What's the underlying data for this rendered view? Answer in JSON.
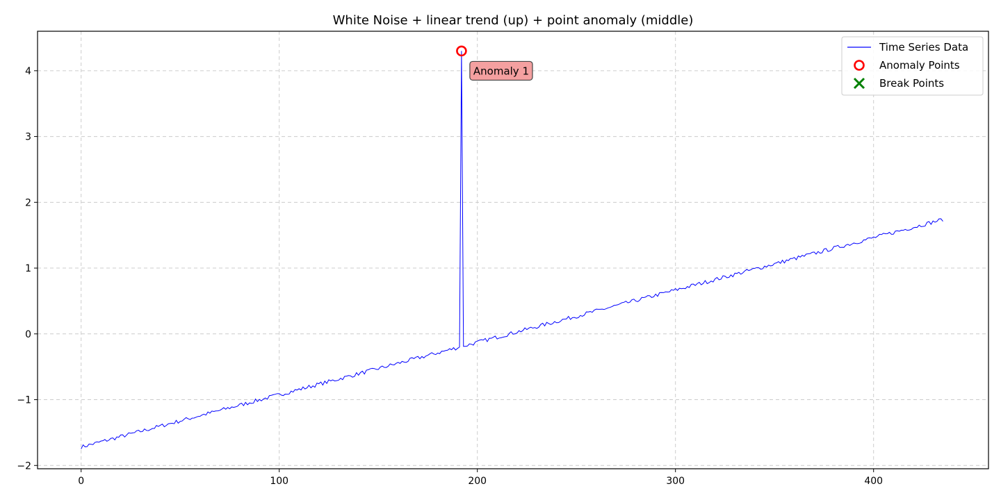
{
  "chart_data": {
    "type": "line",
    "title": "White Noise + linear trend (up) + point anomaly (middle)",
    "xlabel": "",
    "ylabel": "",
    "xlim": [
      -22,
      458
    ],
    "ylim": [
      -2.05,
      4.6
    ],
    "xticks": [
      0,
      100,
      200,
      300,
      400
    ],
    "xtick_labels": [
      "0",
      "100",
      "200",
      "300",
      "400"
    ],
    "yticks": [
      -2,
      -1,
      0,
      1,
      2,
      3,
      4
    ],
    "ytick_labels": [
      "−2",
      "−1",
      "0",
      "1",
      "2",
      "3",
      "4"
    ],
    "grid": true,
    "legend_position": "top-right",
    "series": [
      {
        "name": "Time Series Data",
        "color": "#0000ff",
        "trend": {
          "x_start": 0,
          "x_end": 435,
          "y_start": -1.72,
          "y_end": 1.74,
          "noise_amplitude": 0.03
        },
        "spike": {
          "x": 192,
          "y": 4.3,
          "prev_y": -0.2,
          "next_y": -0.19
        }
      }
    ],
    "anomaly_points": [
      {
        "x": 192,
        "y": 4.3
      }
    ],
    "break_points": [],
    "annotations": [
      {
        "text": "Anomaly 1",
        "x": 192,
        "y": 4.3
      }
    ],
    "legend": [
      {
        "label": "Time Series Data",
        "marker": "line",
        "color": "#0000ff"
      },
      {
        "label": "Anomaly Points",
        "marker": "circle",
        "color": "#ff0000"
      },
      {
        "label": "Break Points",
        "marker": "x",
        "color": "#008000"
      }
    ]
  }
}
